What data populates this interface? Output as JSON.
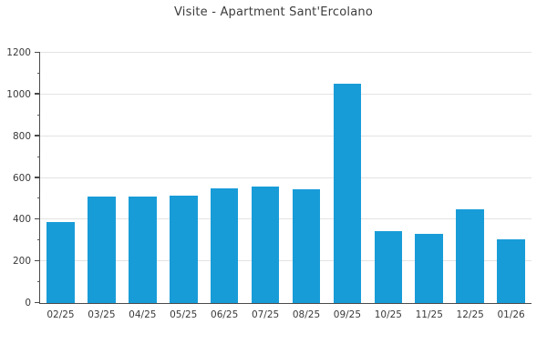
{
  "chart_data": {
    "type": "bar",
    "title": "Visite - Apartment Sant'Ercolano",
    "categories": [
      "02/25",
      "03/25",
      "04/25",
      "05/25",
      "06/25",
      "07/25",
      "08/25",
      "09/25",
      "10/25",
      "11/25",
      "12/25",
      "01/26"
    ],
    "values": [
      390,
      510,
      510,
      515,
      550,
      560,
      545,
      1050,
      345,
      330,
      450,
      305
    ],
    "xlabel": "",
    "ylabel": "",
    "ylim": [
      0,
      1200
    ],
    "yticks_major": [
      0,
      200,
      400,
      600,
      800,
      1000,
      1200
    ],
    "yticks_minor": [
      100,
      300,
      500,
      700,
      900,
      1100
    ],
    "grid": "horizontal-major-only",
    "legend": "none",
    "colors": {
      "bar": "#189cd8",
      "axis": "#4a4a4a",
      "grid": "#e3e3e3",
      "text": "#3a3a3a",
      "background": "#ffffff"
    }
  }
}
